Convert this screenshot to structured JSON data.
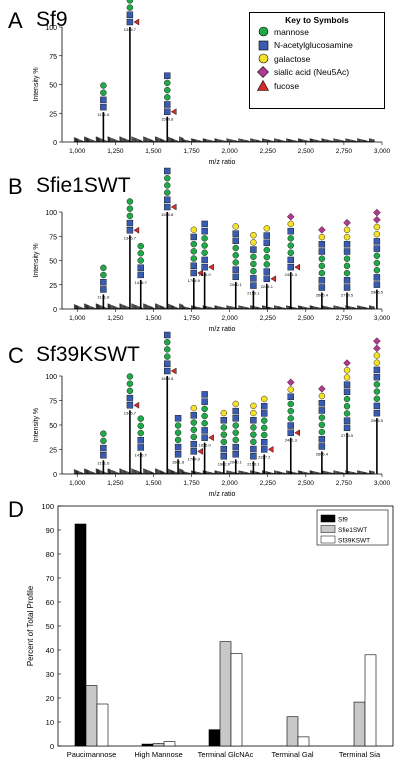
{
  "panels": [
    {
      "letter": "A",
      "title": "Sf9"
    },
    {
      "letter": "B",
      "title": "Sfie1SWT"
    },
    {
      "letter": "C",
      "title": "Sf39KSWT"
    },
    {
      "letter": "D",
      "title": ""
    }
  ],
  "legend": {
    "title": "Key to Symbols",
    "items": [
      {
        "label": "mannose",
        "shape": "circle",
        "color": "#22a84a"
      },
      {
        "label": "N-acetylglucosamine",
        "shape": "square",
        "color": "#3a5cb0"
      },
      {
        "label": "galactose",
        "shape": "circle",
        "color": "#f5e12a"
      },
      {
        "label": "sialic acid (Neu5Ac)",
        "shape": "diamond",
        "color": "#b03a8e"
      },
      {
        "label": "fucose",
        "shape": "triangle",
        "color": "#d42a2a"
      }
    ]
  },
  "spectra_axes": {
    "xlabel": "m/z ratio",
    "ylabel": "Intensity %",
    "xticks": [
      "1,000",
      "1,250",
      "1,500",
      "1,750",
      "2,000",
      "2,250",
      "2,500",
      "2,750",
      "3,000"
    ],
    "yticks": [
      "0",
      "25",
      "50",
      "75",
      "100"
    ]
  },
  "bar_axes": {
    "ylabel": "Percent of Total Profile",
    "yticks": [
      "0",
      "10",
      "20",
      "30",
      "40",
      "50",
      "60",
      "70",
      "80",
      "90",
      "100"
    ]
  },
  "chart_data": [
    {
      "type": "line",
      "title": "Sf9",
      "xlabel": "m/z ratio",
      "ylabel": "Intensity %",
      "xlim": [
        900,
        3000
      ],
      "ylim": [
        0,
        100
      ],
      "peaks": [
        {
          "mz": 1171.6,
          "intensity": 26
        },
        {
          "mz": 1345.7,
          "intensity": 100
        },
        {
          "mz": 1590.8,
          "intensity": 22
        }
      ],
      "peak_labels": [
        "1171.6",
        "1345.7",
        "1590.8"
      ]
    },
    {
      "type": "line",
      "title": "Sfie1SWT",
      "xlabel": "m/z ratio",
      "ylabel": "Intensity %",
      "xlim": [
        900,
        3000
      ],
      "ylim": [
        0,
        100
      ],
      "peaks": [
        {
          "mz": 1171.6,
          "intensity": 15
        },
        {
          "mz": 1345.7,
          "intensity": 76
        },
        {
          "mz": 1416.7,
          "intensity": 30
        },
        {
          "mz": 1590.8,
          "intensity": 100
        },
        {
          "mz": 1764.9,
          "intensity": 32
        },
        {
          "mz": 1836.0,
          "intensity": 38
        },
        {
          "mz": 2040.1,
          "intensity": 28
        },
        {
          "mz": 2156.1,
          "intensity": 19
        },
        {
          "mz": 2244.1,
          "intensity": 26
        },
        {
          "mz": 2401.3,
          "intensity": 38
        },
        {
          "mz": 2605.4,
          "intensity": 17
        },
        {
          "mz": 2770.5,
          "intensity": 17
        },
        {
          "mz": 2966.5,
          "intensity": 20
        }
      ],
      "peak_labels": [
        "1171.6",
        "1345.7",
        "1416.7",
        "1590.8",
        "1764.9",
        "1836.0",
        "2040.1",
        "2156.1",
        "2244.1",
        "2401.3",
        "2605.4",
        "2770.5",
        "2966.5"
      ]
    },
    {
      "type": "line",
      "title": "Sf39KSWT",
      "xlabel": "m/z ratio",
      "ylabel": "Intensity %",
      "xlim": [
        900,
        3000
      ],
      "ylim": [
        0,
        100
      ],
      "peaks": [
        {
          "mz": 1171.6,
          "intensity": 14
        },
        {
          "mz": 1345.7,
          "intensity": 65
        },
        {
          "mz": 1416.7,
          "intensity": 22
        },
        {
          "mz": 1590.8,
          "intensity": 100
        },
        {
          "mz": 1661.8,
          "intensity": 15
        },
        {
          "mz": 1764.9,
          "intensity": 18
        },
        {
          "mz": 1836.0,
          "intensity": 32
        },
        {
          "mz": 1962.0,
          "intensity": 13
        },
        {
          "mz": 2040.1,
          "intensity": 15
        },
        {
          "mz": 2156.1,
          "intensity": 13
        },
        {
          "mz": 2227.2,
          "intensity": 20
        },
        {
          "mz": 2401.3,
          "intensity": 37
        },
        {
          "mz": 2605.4,
          "intensity": 23
        },
        {
          "mz": 2770.5,
          "intensity": 42
        },
        {
          "mz": 2966.5,
          "intensity": 57
        }
      ],
      "peak_labels": [
        "1171.6",
        "1345.7",
        "1416.7",
        "1590.8",
        "1661.8",
        "1764.9",
        "1836.0",
        "1962.0",
        "2040.1",
        "2156.1",
        "2227.2",
        "2401.3",
        "2605.4",
        "2770.5",
        "2966.5"
      ]
    },
    {
      "type": "bar",
      "title": "",
      "ylabel": "Percent of Total Profile",
      "ylim": [
        0,
        100
      ],
      "categories": [
        "Paucimannose",
        "High Mannose",
        "Terminal GlcNAc",
        "Terminal Gal",
        "Terminal Sia"
      ],
      "series": [
        {
          "name": "Sf9",
          "color": "#000000",
          "values": [
            92.5,
            0.8,
            6.8,
            0,
            0
          ]
        },
        {
          "name": "Sfie1SWT",
          "color": "#c8c8c8",
          "values": [
            25.2,
            1.0,
            43.5,
            12.2,
            18.3
          ]
        },
        {
          "name": "Sf39KSWT",
          "color": "#ffffff",
          "values": [
            17.5,
            1.8,
            38.5,
            3.8,
            38.0
          ]
        }
      ],
      "legend_position": "top-right"
    }
  ]
}
